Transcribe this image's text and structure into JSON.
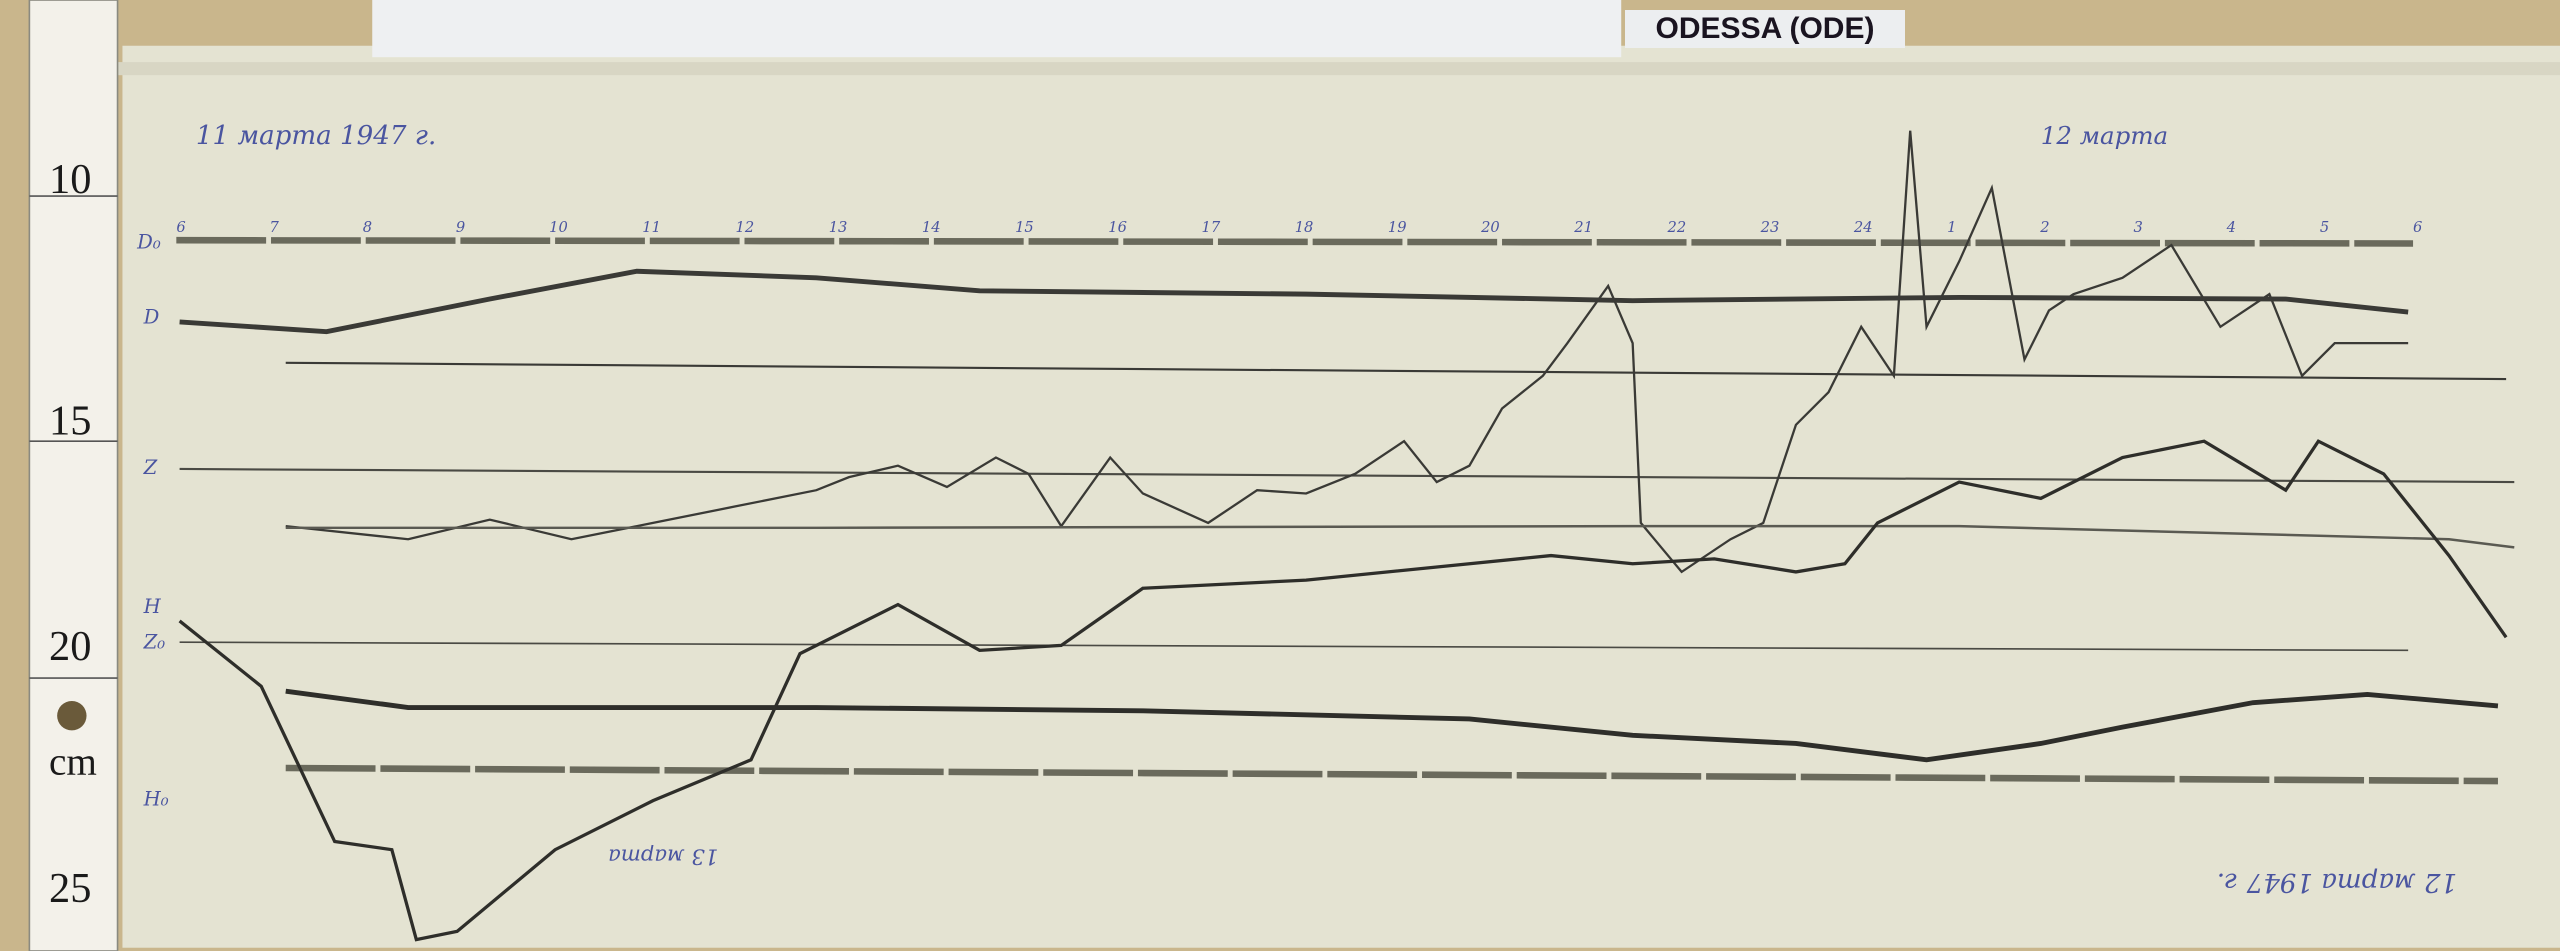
{
  "station_label": "ODESSA (ODE)",
  "annotations": {
    "start_date": "11 марта 1947 г.",
    "next_day": "12 марта",
    "bottom_mirrored_day": "13 марта",
    "bottom_mirrored_date": "12 марта 1947 г."
  },
  "trace_labels": {
    "d": "D",
    "z": "Z",
    "h": "H",
    "h_base": "H₀",
    "z_base": "Z₀",
    "d_base": "D₀"
  },
  "ruler": {
    "marks": [
      "10",
      "15",
      "20",
      "25"
    ],
    "unit": "cm"
  },
  "top_hours": [
    "6",
    "7",
    "8",
    "9",
    "10",
    "11",
    "12",
    "13",
    "14",
    "15",
    "16",
    "17",
    "18",
    "19",
    "20",
    "21",
    "22",
    "23",
    "24",
    "1",
    "2",
    "3",
    "4",
    "5",
    "6"
  ],
  "colors": {
    "paper": "#e4e3d2",
    "ink": "#3a3a36",
    "handwriting": "#4a55a0",
    "board": "#c9b68c"
  }
}
